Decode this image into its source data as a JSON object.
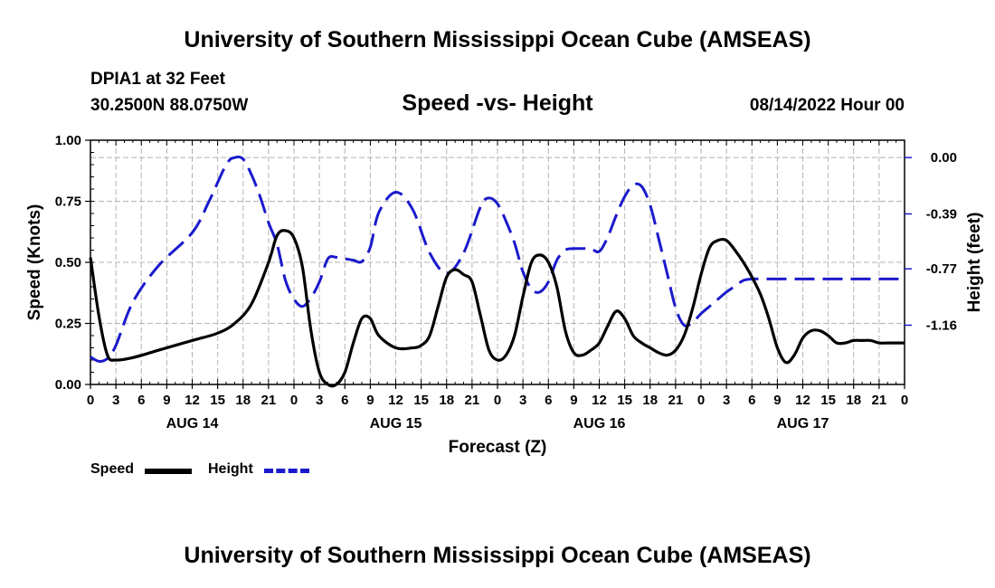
{
  "header": {
    "title": "University of Southern Mississippi Ocean Cube (AMSEAS)",
    "station": "DPIA1 at 32 Feet",
    "coords": "30.2500N  88.0750W",
    "subtitle": "Speed -vs- Height",
    "datetime": "08/14/2022 Hour 00"
  },
  "footer": {
    "title": "University of Southern Mississippi Ocean Cube (AMSEAS)"
  },
  "colors": {
    "speed": "#000000",
    "height": "#1a1acc",
    "grid": "#b4b4b4"
  },
  "chart_data": {
    "type": "line",
    "title": "Speed -vs- Height",
    "xlabel": "Forecast (Z)",
    "ylabel": "Speed (Knots)",
    "y2label": "Height (feet)",
    "x_ticks": [
      "0",
      "3",
      "6",
      "9",
      "12",
      "15",
      "18",
      "21",
      "0",
      "3",
      "6",
      "9",
      "12",
      "15",
      "18",
      "21",
      "0",
      "3",
      "6",
      "9",
      "12",
      "15",
      "18",
      "21",
      "0",
      "3",
      "6",
      "9",
      "12",
      "15",
      "18",
      "21",
      "0"
    ],
    "day_labels": [
      {
        "label": "AUG 14",
        "hour": 12
      },
      {
        "label": "AUG 15",
        "hour": 36
      },
      {
        "label": "AUG 16",
        "hour": 60
      },
      {
        "label": "AUG 17",
        "hour": 84
      }
    ],
    "xlim": [
      0,
      96
    ],
    "ylim": [
      0,
      1.0
    ],
    "yticks": [
      "0.00",
      "0.25",
      "0.50",
      "0.75",
      "1.00"
    ],
    "y2lim": [
      -1.57,
      0.12
    ],
    "y2ticks": [
      {
        "label": "0.00",
        "value": 0.0
      },
      {
        "label": "-0.39",
        "value": -0.39
      },
      {
        "label": "-0.77",
        "value": -0.77
      },
      {
        "label": "-1.16",
        "value": -1.16
      }
    ],
    "legend": [
      "Speed",
      "Height"
    ],
    "series": [
      {
        "name": "Speed",
        "axis": "left",
        "style": "solid",
        "x": [
          0,
          1,
          2,
          3,
          5,
          8,
          12,
          15,
          17,
          19,
          21,
          22,
          23,
          24,
          25,
          26,
          27,
          28,
          29,
          30,
          31,
          32,
          33,
          34,
          36,
          38,
          39,
          40,
          41,
          42,
          43,
          44,
          45,
          46,
          47,
          48,
          49,
          50,
          51,
          52,
          53,
          54,
          55,
          56,
          57,
          58,
          59,
          60,
          61,
          62,
          63,
          64,
          65,
          66,
          67,
          68,
          69,
          70,
          71,
          72,
          73,
          74,
          75,
          76,
          77,
          78,
          79,
          80,
          81,
          82,
          83,
          84,
          85,
          86,
          87,
          88,
          89,
          90,
          91,
          92,
          93,
          94,
          95,
          96
        ],
        "values": [
          0.52,
          0.28,
          0.12,
          0.1,
          0.11,
          0.14,
          0.18,
          0.21,
          0.25,
          0.33,
          0.5,
          0.61,
          0.63,
          0.6,
          0.48,
          0.22,
          0.05,
          0.0,
          0.0,
          0.05,
          0.17,
          0.27,
          0.27,
          0.2,
          0.15,
          0.15,
          0.16,
          0.2,
          0.32,
          0.44,
          0.47,
          0.45,
          0.42,
          0.28,
          0.14,
          0.1,
          0.12,
          0.2,
          0.36,
          0.5,
          0.53,
          0.5,
          0.4,
          0.22,
          0.13,
          0.12,
          0.14,
          0.17,
          0.24,
          0.3,
          0.27,
          0.2,
          0.17,
          0.15,
          0.13,
          0.12,
          0.14,
          0.2,
          0.31,
          0.45,
          0.56,
          0.59,
          0.59,
          0.55,
          0.5,
          0.44,
          0.37,
          0.27,
          0.15,
          0.09,
          0.12,
          0.19,
          0.22,
          0.22,
          0.2,
          0.17,
          0.17,
          0.18,
          0.18,
          0.18,
          0.17,
          0.17,
          0.17,
          0.17
        ]
      },
      {
        "name": "Height",
        "axis": "right",
        "style": "dashed",
        "x": [
          0,
          1,
          2,
          3,
          5,
          8,
          12,
          14,
          16,
          17,
          18,
          19,
          20,
          21,
          22,
          23,
          24,
          25,
          26,
          27,
          28,
          29,
          30,
          31,
          32,
          33,
          34,
          36,
          38,
          40,
          42,
          44,
          46,
          47,
          48,
          49,
          50,
          51,
          52,
          53,
          54,
          55,
          56,
          57,
          58,
          59,
          60,
          61,
          62,
          63,
          64,
          65,
          66,
          67,
          68,
          69,
          70,
          71,
          72,
          73,
          74,
          75,
          76,
          77,
          78,
          79,
          80,
          81,
          82,
          83,
          84,
          85,
          86,
          87,
          88,
          89,
          90,
          91,
          92,
          93,
          94,
          95,
          96
        ],
        "values": [
          -1.38,
          -1.41,
          -1.39,
          -1.3,
          -1.0,
          -0.75,
          -0.52,
          -0.3,
          -0.05,
          0.0,
          -0.01,
          -0.12,
          -0.27,
          -0.45,
          -0.6,
          -0.85,
          -0.98,
          -1.03,
          -0.97,
          -0.86,
          -0.7,
          -0.69,
          -0.7,
          -0.71,
          -0.72,
          -0.62,
          -0.38,
          -0.24,
          -0.36,
          -0.66,
          -0.8,
          -0.66,
          -0.34,
          -0.28,
          -0.32,
          -0.44,
          -0.59,
          -0.79,
          -0.91,
          -0.93,
          -0.86,
          -0.71,
          -0.64,
          -0.63,
          -0.63,
          -0.63,
          -0.65,
          -0.55,
          -0.4,
          -0.27,
          -0.19,
          -0.2,
          -0.33,
          -0.56,
          -0.8,
          -1.04,
          -1.16,
          -1.14,
          -1.08,
          -1.03,
          -0.98,
          -0.93,
          -0.89,
          -0.85,
          -0.84,
          -0.84,
          -0.84,
          -0.84,
          -0.84,
          -0.84,
          -0.84,
          -0.84,
          -0.84,
          -0.84,
          -0.84,
          -0.84,
          -0.84,
          -0.84,
          -0.84,
          -0.84,
          -0.84,
          -0.84,
          -0.84
        ]
      }
    ]
  }
}
